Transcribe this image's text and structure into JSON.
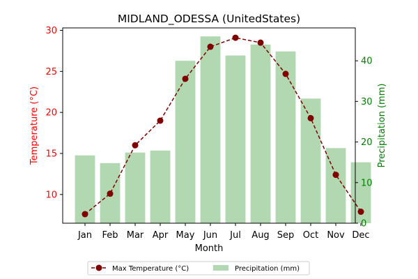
{
  "chart_data": {
    "type": "bar+line",
    "title": "MIDLAND_ODESSA (UnitedStates)",
    "xlabel": "Month",
    "categories": [
      "Jan",
      "Feb",
      "Mar",
      "Apr",
      "May",
      "Jun",
      "Jul",
      "Aug",
      "Sep",
      "Oct",
      "Nov",
      "Dec"
    ],
    "left_axis": {
      "label": "Temperature (°C)",
      "color": "#ff0000",
      "range": [
        6.5,
        30.3
      ],
      "ticks": [
        10,
        15,
        20,
        25,
        30
      ]
    },
    "right_axis": {
      "label": "Precipitation (mm)",
      "color": "#008000",
      "range": [
        0,
        48.1
      ],
      "ticks": [
        0,
        10,
        20,
        30,
        40
      ]
    },
    "series": [
      {
        "name": "Max Temperature (°C)",
        "type": "line",
        "axis": "left",
        "color": "#800000",
        "line_style": "dashed",
        "marker": "circle",
        "values": [
          7.6,
          10.1,
          16.0,
          19.0,
          24.1,
          28.0,
          29.1,
          28.5,
          24.7,
          19.3,
          12.4,
          7.9
        ]
      },
      {
        "name": "Precipitation (mm)",
        "type": "bar",
        "axis": "right",
        "color": "#b2d8b2",
        "values": [
          16.7,
          14.8,
          17.4,
          17.9,
          40.0,
          46.0,
          41.3,
          44.0,
          42.3,
          30.7,
          18.5,
          15.0
        ]
      }
    ],
    "legend_position": "bottom-center",
    "grid": false
  }
}
